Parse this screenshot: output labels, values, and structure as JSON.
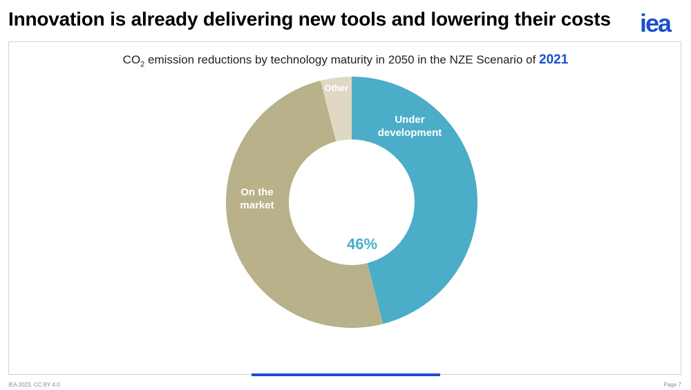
{
  "slide": {
    "title": "Innovation is already delivering new tools and lowering their costs",
    "logo_text": "iea"
  },
  "subtitle": {
    "prefix": "CO",
    "subscript": "2",
    "text": " emission reductions by technology maturity in 2050 in the NZE Scenario of ",
    "year": "2021"
  },
  "chart_data": {
    "type": "pie",
    "donut": true,
    "slices": [
      {
        "label": "Under development",
        "value": 46,
        "color": "#4badc8"
      },
      {
        "label": "On the market",
        "value": 50,
        "color": "#b8b189"
      },
      {
        "label": "Other",
        "value": 4,
        "color": "#dfd9c4"
      }
    ],
    "center_label": "46%",
    "center_label_color": "#4badc8"
  },
  "footer": {
    "left": "IEA 2023. CC BY 4.0.",
    "right": "Page 7"
  },
  "colors": {
    "accent": "#1a4fcf",
    "title": "#000000"
  }
}
